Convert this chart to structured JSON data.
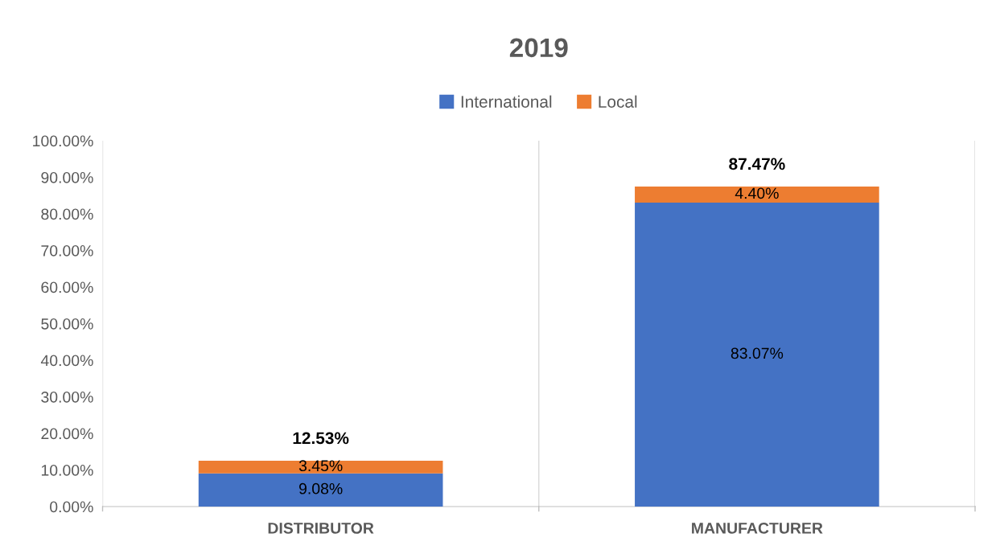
{
  "chart_data": {
    "type": "bar",
    "title": "2019",
    "stacked": true,
    "categories": [
      "DISTRIBUTOR",
      "MANUFACTURER"
    ],
    "series": [
      {
        "name": "International",
        "color": "#4472c4",
        "values": [
          9.08,
          83.07
        ],
        "value_labels": [
          "9.08%",
          "83.07%"
        ]
      },
      {
        "name": "Local",
        "color": "#ed7d31",
        "values": [
          3.45,
          4.4
        ],
        "value_labels": [
          "3.45%",
          "4.40%"
        ]
      }
    ],
    "totals": [
      "12.53%",
      "87.47%"
    ],
    "ylim": [
      0,
      100
    ],
    "yticks": [
      {
        "value": 0,
        "label": "0.00%"
      },
      {
        "value": 10,
        "label": "10.00%"
      },
      {
        "value": 20,
        "label": "20.00%"
      },
      {
        "value": 30,
        "label": "30.00%"
      },
      {
        "value": 40,
        "label": "40.00%"
      },
      {
        "value": 50,
        "label": "50.00%"
      },
      {
        "value": 60,
        "label": "60.00%"
      },
      {
        "value": 70,
        "label": "70.00%"
      },
      {
        "value": 80,
        "label": "80.00%"
      },
      {
        "value": 90,
        "label": "90.00%"
      },
      {
        "value": 100,
        "label": "100.00%"
      }
    ],
    "grid": "x",
    "legend": "top"
  }
}
